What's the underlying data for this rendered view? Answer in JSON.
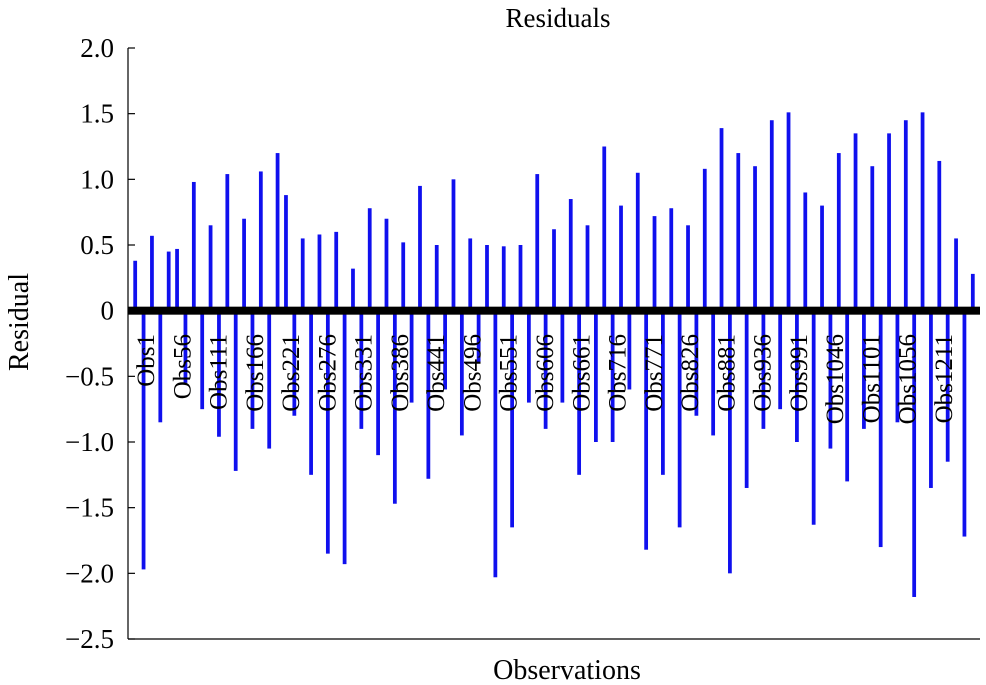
{
  "chart_data": {
    "type": "bar",
    "title": "Residuals",
    "xlabel": "Observations",
    "ylabel": "Residual",
    "ylim": [
      -2.5,
      2.0
    ],
    "yticks": [
      2.0,
      1.5,
      1.0,
      0.5,
      0,
      -0.5,
      -1.0,
      -1.5,
      -2.0,
      -2.5
    ],
    "ytick_labels": [
      "2.0",
      "1.5",
      "1.0",
      "0.5",
      "0",
      "−0.5",
      "−1.0",
      "−1.5",
      "−2.0",
      "−2.5"
    ],
    "xtick_labels": [
      "Obs1",
      "Obs56",
      "Obs111",
      "Obs166",
      "Obs221",
      "Obs276",
      "Obs331",
      "Obs386",
      "Obs441",
      "Obs496",
      "Obs551",
      "Obs606",
      "Obs661",
      "Obs716",
      "Obs771",
      "Obs826",
      "Obs881",
      "Obs936",
      "Obs991",
      "Obs1046",
      "Obs1101",
      "Obs1056",
      "Obs1211"
    ],
    "n_observations": 1265,
    "bar_color": "#1010ee",
    "grid": false,
    "series": [
      {
        "values": [
          0.38,
          -1.97,
          0.57,
          -0.85,
          0.45,
          0.47,
          -0.55,
          0.98,
          -0.75,
          0.65,
          -0.96,
          1.04,
          -1.22,
          0.7,
          -0.9,
          1.06,
          -1.05,
          1.2,
          0.88,
          -0.8,
          0.55,
          -1.25,
          0.58,
          -1.85,
          0.6,
          -1.93,
          0.32,
          -0.9,
          0.78,
          -1.1,
          0.7,
          -1.47,
          0.52,
          -0.7,
          0.95,
          -1.28,
          0.5,
          -0.6,
          1.0,
          -0.95,
          0.55,
          -0.4,
          0.5,
          -2.03,
          0.49,
          -1.65,
          0.5,
          -0.7,
          1.04,
          -0.9,
          0.62,
          -0.7,
          0.85,
          -1.25,
          0.65,
          -1.0,
          1.25,
          -1.0,
          0.8,
          -0.6,
          1.05,
          -1.82,
          0.72,
          -1.25,
          0.78,
          -1.65,
          0.65,
          -0.8,
          1.08,
          -0.95,
          1.39,
          -2.0,
          1.2,
          -1.35,
          1.1,
          -0.9,
          1.45,
          -0.75,
          1.51,
          -1.0,
          0.9,
          -1.63,
          0.8,
          -1.05,
          1.2,
          -1.3,
          1.35,
          -0.9,
          1.1,
          -1.8,
          1.35,
          -0.85,
          1.45,
          -2.18,
          1.51,
          -1.35,
          1.14,
          -1.15,
          0.55,
          -1.72,
          0.28
        ]
      }
    ]
  }
}
